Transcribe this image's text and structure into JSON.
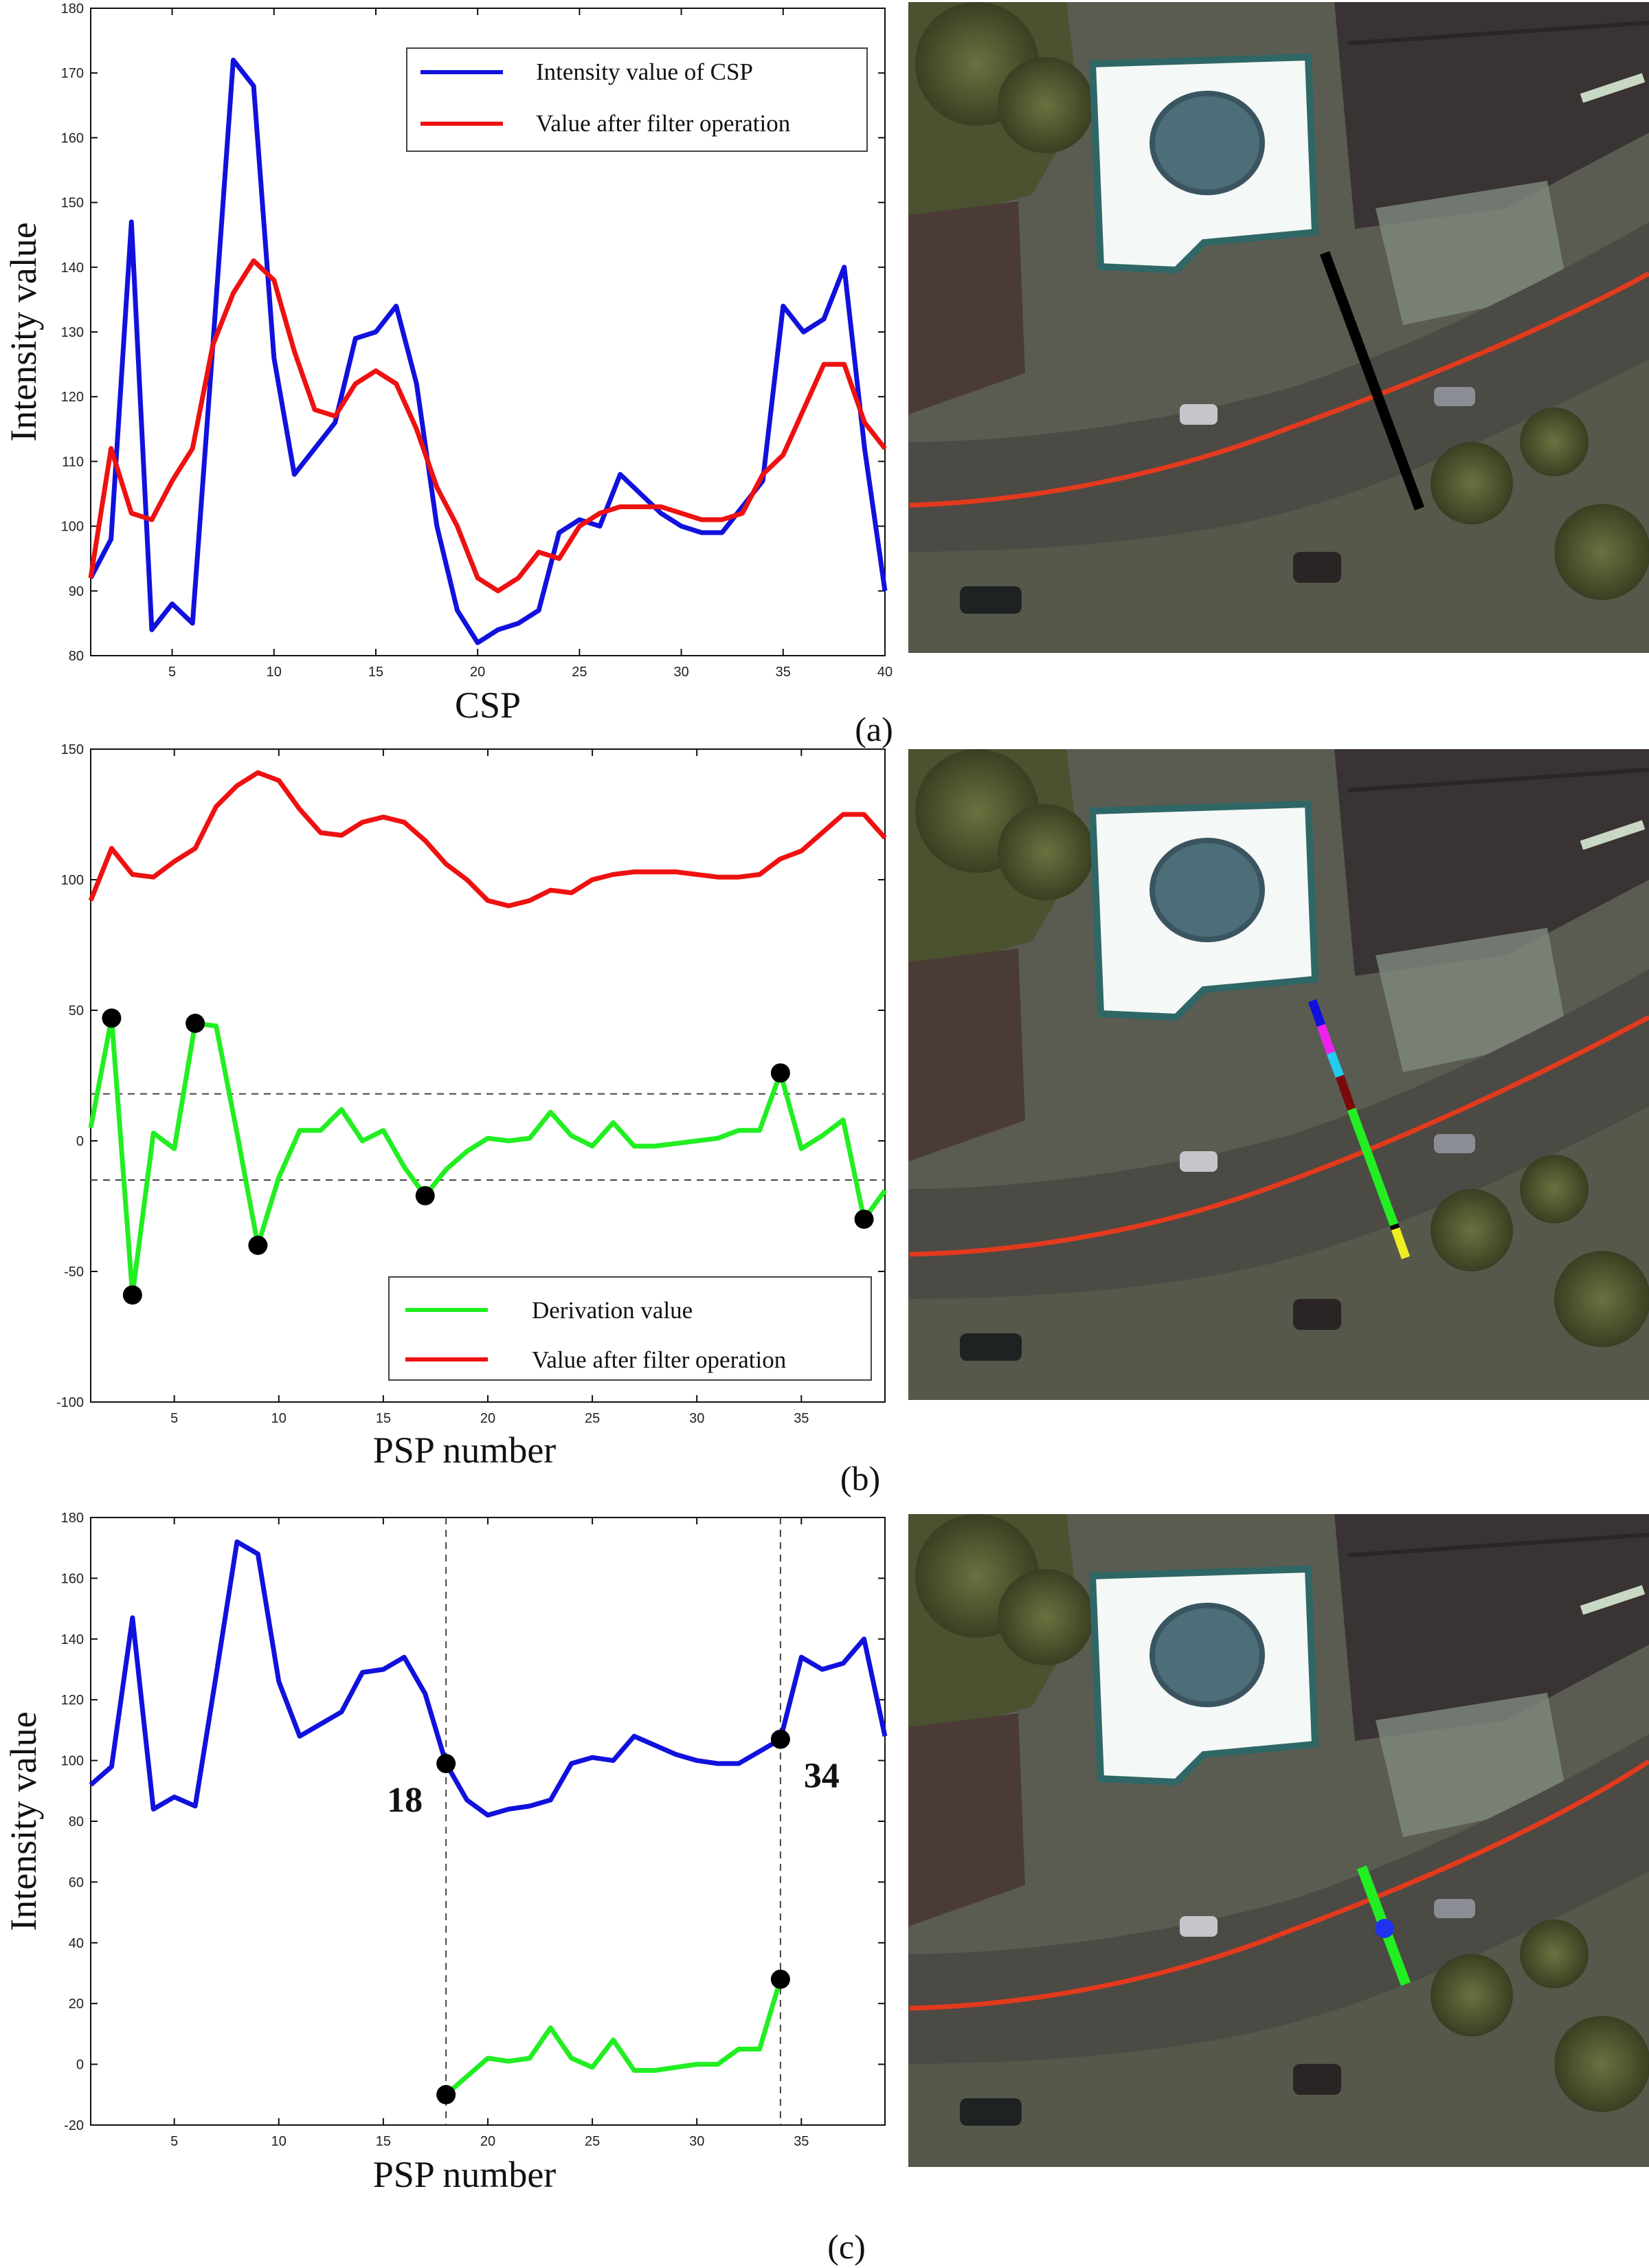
{
  "panels": [
    {
      "id": "a",
      "label": "(a)",
      "chart_data": {
        "type": "line",
        "xlabel": "CSP",
        "ylabel": "Intensity  value",
        "xlim": [
          1,
          40
        ],
        "ylim": [
          80,
          180
        ],
        "xticks": [
          5,
          10,
          15,
          20,
          25,
          30,
          35,
          40
        ],
        "yticks": [
          80,
          90,
          100,
          110,
          120,
          130,
          140,
          150,
          160,
          170,
          180
        ],
        "legend": "top-right",
        "grid": false,
        "series": [
          {
            "name": "Intensity value of CSP",
            "color": "#1111dd",
            "x": [
              1,
              2,
              3,
              4,
              5,
              6,
              7,
              8,
              9,
              10,
              11,
              12,
              13,
              14,
              15,
              16,
              17,
              18,
              19,
              20,
              21,
              22,
              23,
              24,
              25,
              26,
              27,
              28,
              29,
              30,
              31,
              32,
              33,
              34,
              35,
              36,
              37,
              38,
              39,
              40
            ],
            "values": [
              92,
              98,
              147,
              84,
              88,
              85,
              128,
              172,
              168,
              126,
              108,
              112,
              116,
              129,
              130,
              134,
              122,
              100,
              87,
              82,
              84,
              85,
              87,
              99,
              101,
              100,
              108,
              105,
              102,
              100,
              99,
              99,
              103,
              107,
              134,
              130,
              132,
              140,
              112,
              90
            ]
          },
          {
            "name": "Value after filter operation",
            "color": "#ee1111",
            "x": [
              1,
              2,
              3,
              4,
              5,
              6,
              7,
              8,
              9,
              10,
              11,
              12,
              13,
              14,
              15,
              16,
              17,
              18,
              19,
              20,
              21,
              22,
              23,
              24,
              25,
              26,
              27,
              28,
              29,
              30,
              31,
              32,
              33,
              34,
              35,
              36,
              37,
              38,
              39,
              40
            ],
            "values": [
              92,
              112,
              102,
              101,
              107,
              112,
              128,
              136,
              141,
              138,
              127,
              118,
              117,
              122,
              124,
              122,
              115,
              106,
              100,
              92,
              90,
              92,
              96,
              95,
              100,
              102,
              103,
              103,
              103,
              102,
              101,
              101,
              102,
              108,
              111,
              118,
              125,
              125,
              116,
              112
            ]
          }
        ]
      }
    },
    {
      "id": "b",
      "label": "(b)",
      "chart_data": {
        "type": "line",
        "xlabel": "PSP number",
        "ylabel": "",
        "xlim": [
          1,
          39
        ],
        "ylim": [
          -100,
          150
        ],
        "xticks": [
          5,
          10,
          15,
          20,
          25,
          30,
          35
        ],
        "yticks": [
          -100,
          -50,
          0,
          50,
          100,
          150
        ],
        "thresholds": [
          18,
          -15
        ],
        "legend": "bottom-right",
        "grid": false,
        "series": [
          {
            "name": "Derivation value",
            "color": "#22ee22",
            "x": [
              1,
              2,
              3,
              4,
              5,
              6,
              7,
              8,
              9,
              10,
              11,
              12,
              13,
              14,
              15,
              16,
              17,
              18,
              19,
              20,
              21,
              22,
              23,
              24,
              25,
              26,
              27,
              28,
              29,
              30,
              31,
              32,
              33,
              34,
              35,
              36,
              37,
              38,
              39
            ],
            "values": [
              5,
              47,
              -59,
              3,
              -3,
              45,
              44,
              3,
              -40,
              -14,
              4,
              4,
              12,
              0,
              4,
              -10,
              -21,
              -11,
              -4,
              1,
              0,
              1,
              11,
              2,
              -2,
              7,
              -2,
              -2,
              -1,
              0,
              1,
              4,
              4,
              26,
              -3,
              2,
              8,
              -30,
              -19
            ]
          },
          {
            "name": "Value after filter operation",
            "color": "#ee1111",
            "x": [
              1,
              2,
              3,
              4,
              5,
              6,
              7,
              8,
              9,
              10,
              11,
              12,
              13,
              14,
              15,
              16,
              17,
              18,
              19,
              20,
              21,
              22,
              23,
              24,
              25,
              26,
              27,
              28,
              29,
              30,
              31,
              32,
              33,
              34,
              35,
              36,
              37,
              38,
              39
            ],
            "values": [
              92,
              112,
              102,
              101,
              107,
              112,
              128,
              136,
              141,
              138,
              127,
              118,
              117,
              122,
              124,
              122,
              115,
              106,
              100,
              92,
              90,
              92,
              96,
              95,
              100,
              102,
              103,
              103,
              103,
              102,
              101,
              101,
              102,
              108,
              111,
              118,
              125,
              125,
              116
            ]
          }
        ],
        "markers": [
          {
            "x": 2,
            "y": 47
          },
          {
            "x": 3,
            "y": -59
          },
          {
            "x": 6,
            "y": 45
          },
          {
            "x": 9,
            "y": -40
          },
          {
            "x": 17,
            "y": -21
          },
          {
            "x": 34,
            "y": 26
          },
          {
            "x": 38,
            "y": -30
          }
        ]
      }
    },
    {
      "id": "c",
      "label": "(c)",
      "chart_data": {
        "type": "line",
        "xlabel": "PSP number",
        "ylabel": "Intensity value",
        "xlim": [
          1,
          39
        ],
        "ylim": [
          -20,
          180
        ],
        "xticks": [
          5,
          10,
          15,
          20,
          25,
          30,
          35
        ],
        "yticks": [
          -20,
          0,
          20,
          40,
          60,
          80,
          100,
          120,
          140,
          160,
          180
        ],
        "vlines": [
          18,
          34
        ],
        "annotations": [
          {
            "text": "18",
            "x": 18,
            "y": 99
          },
          {
            "text": "34",
            "x": 34,
            "y": 107
          }
        ],
        "grid": false,
        "series": [
          {
            "name": "",
            "color": "#1111dd",
            "x": [
              1,
              2,
              3,
              4,
              5,
              6,
              7,
              8,
              9,
              10,
              11,
              12,
              13,
              14,
              15,
              16,
              17,
              18,
              19,
              20,
              21,
              22,
              23,
              24,
              25,
              26,
              27,
              28,
              29,
              30,
              31,
              32,
              33,
              34,
              35,
              36,
              37,
              38,
              39
            ],
            "values": [
              92,
              98,
              147,
              84,
              88,
              85,
              128,
              172,
              168,
              126,
              108,
              112,
              116,
              129,
              130,
              134,
              122,
              99,
              87,
              82,
              84,
              85,
              87,
              99,
              101,
              100,
              108,
              105,
              102,
              100,
              99,
              99,
              103,
              107,
              134,
              130,
              132,
              140,
              108
            ]
          },
          {
            "name": "",
            "color": "#22ee22",
            "x": [
              18,
              19,
              20,
              21,
              22,
              23,
              24,
              25,
              26,
              27,
              28,
              29,
              30,
              31,
              32,
              33,
              34
            ],
            "values": [
              -10,
              -4,
              2,
              1,
              2,
              12,
              2,
              -1,
              8,
              -2,
              -2,
              -1,
              0,
              0,
              5,
              5,
              28
            ]
          }
        ],
        "markers": [
          {
            "x": 18,
            "y": 99
          },
          {
            "x": 34,
            "y": 107
          },
          {
            "x": 18,
            "y": -10
          },
          {
            "x": 34,
            "y": 28
          }
        ]
      }
    }
  ],
  "images": [
    {
      "id": "photo-a",
      "overlay": "black-profile-line"
    },
    {
      "id": "photo-b",
      "overlay": "colored-segment-line"
    },
    {
      "id": "photo-c",
      "overlay": "green-segment-with-blue-point"
    }
  ]
}
